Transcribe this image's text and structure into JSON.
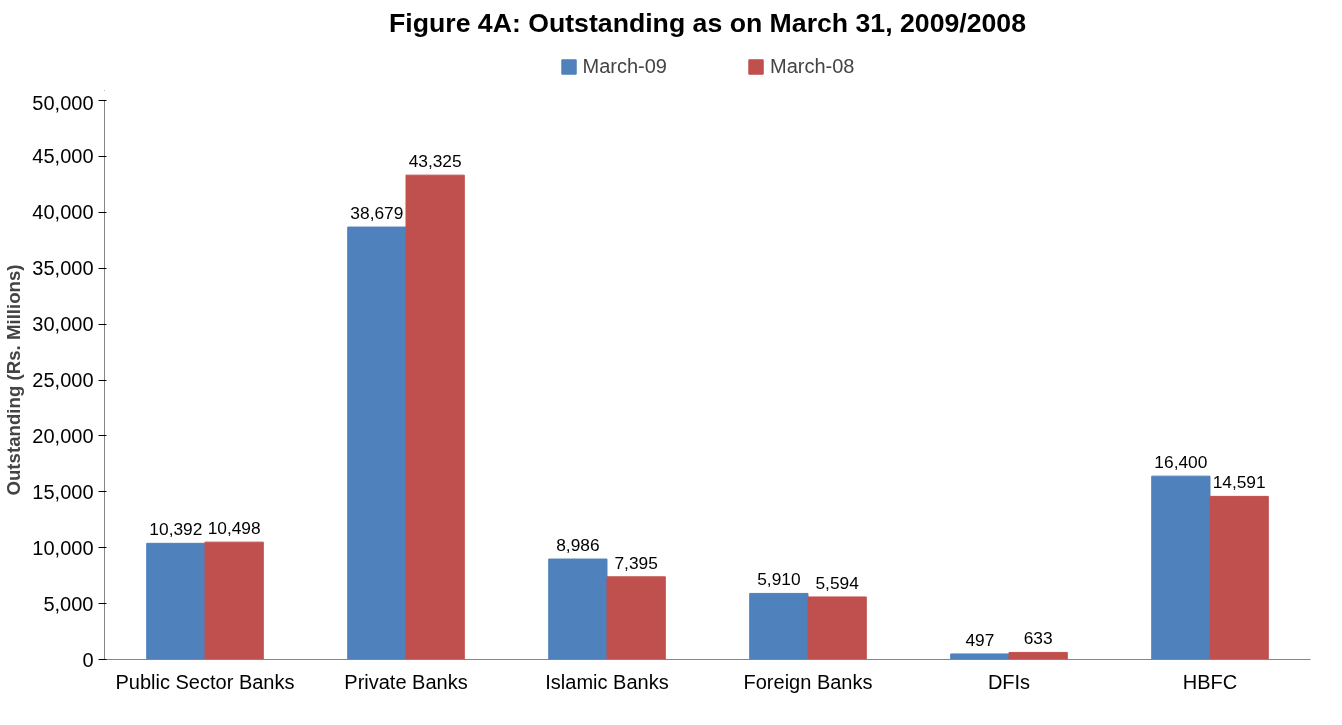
{
  "chart_data": {
    "type": "bar",
    "title": "Figure 4A: Outstanding as on March 31, 2009/2008",
    "ylabel": "Outstanding (Rs. Millions)",
    "categories": [
      "Public Sector Banks",
      "Private Banks",
      "Islamic Banks",
      "Foreign Banks",
      "DFIs",
      "HBFC"
    ],
    "series": [
      {
        "name": "March-09",
        "color": "#4f81bd",
        "values": [
          10392,
          38679,
          8986,
          5910,
          497,
          16400
        ],
        "value_labels": [
          "10,392",
          "38,679",
          "8,986",
          "5,910",
          "497",
          "16,400"
        ]
      },
      {
        "name": "March-08",
        "color": "#c0504d",
        "values": [
          10498,
          43325,
          7395,
          5594,
          633,
          14591
        ],
        "value_labels": [
          "10,498",
          "43,325",
          "7,395",
          "5,594",
          "633",
          "14,591"
        ]
      }
    ],
    "ylim": [
      0,
      50000
    ],
    "yticks": [
      {
        "value": 0,
        "label": "0"
      },
      {
        "value": 5000,
        "label": "5,000"
      },
      {
        "value": 10000,
        "label": "10,000"
      },
      {
        "value": 15000,
        "label": "15,000"
      },
      {
        "value": 20000,
        "label": "20,000"
      },
      {
        "value": 25000,
        "label": "25,000"
      },
      {
        "value": 30000,
        "label": "30,000"
      },
      {
        "value": 35000,
        "label": "35,000"
      },
      {
        "value": 40000,
        "label": "40,000"
      },
      {
        "value": 45000,
        "label": "45,000"
      },
      {
        "value": 50000,
        "label": "50,000"
      }
    ],
    "legend": "top",
    "grid": false
  }
}
